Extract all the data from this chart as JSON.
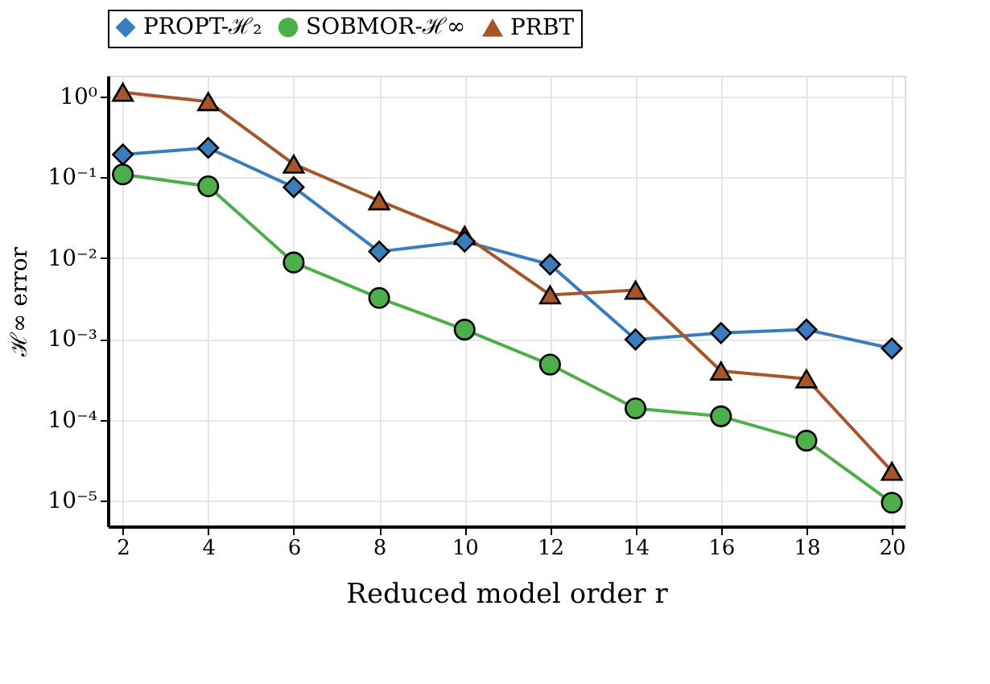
{
  "chart_data": {
    "type": "line",
    "xlabel": "Reduced model order r",
    "ylabel": "ℋ∞ error",
    "x": [
      2,
      4,
      6,
      8,
      10,
      12,
      14,
      16,
      18,
      20
    ],
    "series": [
      {
        "name": "PROPT-ℋ₂",
        "color": "#3a7dbd",
        "marker": "diamond",
        "values": [
          0.19,
          0.23,
          0.075,
          0.012,
          0.016,
          0.0083,
          0.00098,
          0.00118,
          0.0013,
          0.00076
        ]
      },
      {
        "name": "SOBMOR-ℋ∞",
        "color": "#4daf4a",
        "marker": "circle",
        "values": [
          0.108,
          0.077,
          0.0088,
          0.0032,
          0.0013,
          0.00048,
          0.000138,
          0.00011,
          5.5e-05,
          9.4e-06
        ]
      },
      {
        "name": "PRBT",
        "color": "#a65628",
        "marker": "triangle",
        "values": [
          1.12,
          0.86,
          0.145,
          0.051,
          0.019,
          0.0035,
          0.004,
          0.0004,
          0.00032,
          2.3e-05
        ]
      }
    ],
    "log": "y",
    "grid": true,
    "legend": "top",
    "xlim": [
      1.65,
      20.3
    ],
    "xticks": [
      2,
      4,
      6,
      8,
      10,
      12,
      14,
      16,
      18,
      20
    ],
    "ylim": [
      4.8e-06,
      1.8
    ],
    "yticks": [
      {
        "value": 1,
        "label": "10⁰"
      },
      {
        "value": 0.1,
        "label": "10⁻¹"
      },
      {
        "value": 0.01,
        "label": "10⁻²"
      },
      {
        "value": 0.001,
        "label": "10⁻³"
      },
      {
        "value": 0.0001,
        "label": "10⁻⁴"
      },
      {
        "value": 1e-05,
        "label": "10⁻⁵"
      }
    ]
  }
}
